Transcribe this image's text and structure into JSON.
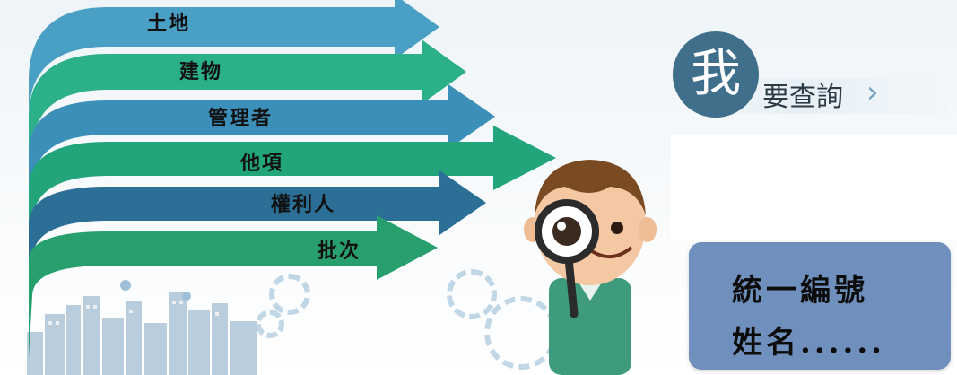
{
  "arrows": [
    {
      "label": "土地",
      "color": "#4aa0c4"
    },
    {
      "label": "建物",
      "color": "#2bb08a"
    },
    {
      "label": "管理者",
      "color": "#3b8fb8"
    },
    {
      "label": "他項",
      "color": "#22a57a"
    },
    {
      "label": "權利人",
      "color": "#2c6f96"
    },
    {
      "label": "批次",
      "color": "#27a06d"
    }
  ],
  "query": {
    "highlight_char": "我",
    "rest_text": "要查詢",
    "chevron": "›",
    "circle_color": "#3f6f8b"
  },
  "info": {
    "line1": "統一編號",
    "line2": "姓名......",
    "box_color": "#6f8fbd"
  },
  "illustration": {
    "character": "person-with-magnifier",
    "background": "city-skyline-and-gears"
  }
}
